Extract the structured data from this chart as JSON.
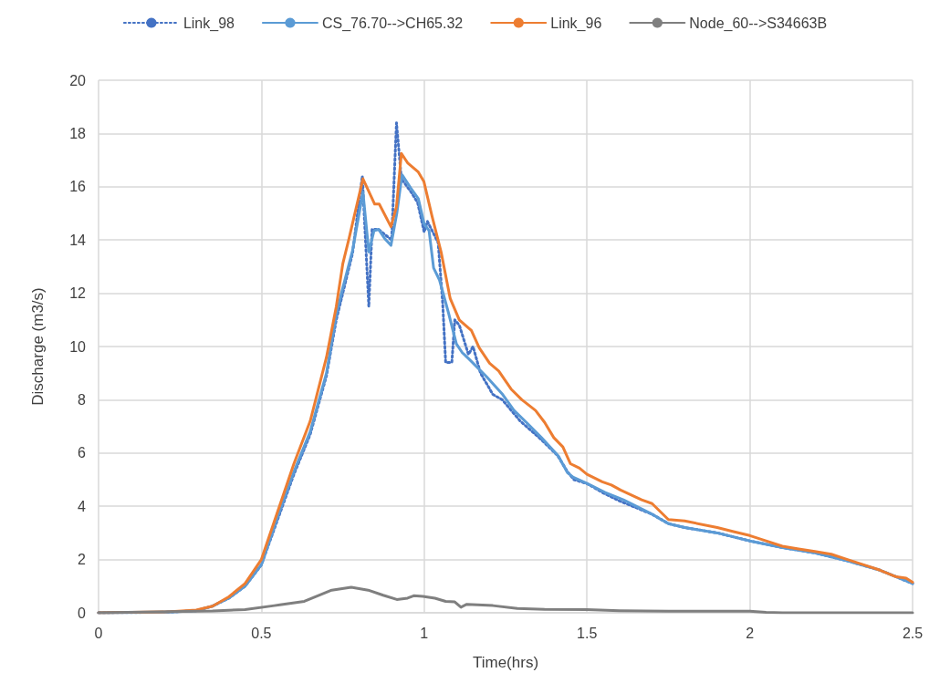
{
  "chart_data": {
    "type": "line",
    "xlabel": "Time(hrs)",
    "ylabel": "Discharge (m3/s)",
    "xlim": [
      0,
      2.5
    ],
    "xticks": [
      0,
      0.5,
      1,
      1.5,
      2,
      2.5
    ],
    "ylim": [
      0,
      20
    ],
    "yticks": [
      0,
      2,
      4,
      6,
      8,
      10,
      12,
      14,
      16,
      18,
      20
    ],
    "grid": true,
    "legend": "top",
    "marker": "none",
    "series": [
      {
        "name": "Link_98",
        "color": "#4472c4",
        "line_style": "dotted",
        "x": [
          0,
          0.2,
          0.3,
          0.35,
          0.4,
          0.45,
          0.5,
          0.55,
          0.6,
          0.65,
          0.7,
          0.73,
          0.75,
          0.78,
          0.81,
          0.83,
          0.84,
          0.86,
          0.9,
          0.915,
          0.93,
          0.96,
          0.98,
          1.0,
          1.01,
          1.043,
          1.057,
          1.066,
          1.085,
          1.094,
          1.108,
          1.136,
          1.15,
          1.173,
          1.211,
          1.24,
          1.295,
          1.36,
          1.41,
          1.44,
          1.46,
          1.5,
          1.55,
          1.6,
          1.7,
          1.75,
          1.8,
          1.9,
          2.0,
          2.1,
          2.2,
          2.3,
          2.4,
          2.5
        ],
        "values": [
          0,
          0.02,
          0.08,
          0.25,
          0.55,
          1.0,
          1.8,
          3.5,
          5.2,
          6.7,
          8.9,
          11.0,
          12.0,
          13.5,
          16.4,
          11.5,
          14.4,
          14.4,
          14.0,
          18.4,
          16.3,
          15.8,
          15.4,
          14.3,
          14.7,
          13.9,
          11.6,
          9.4,
          9.4,
          11.0,
          10.8,
          9.7,
          10.0,
          9.0,
          8.2,
          8.0,
          7.2,
          6.5,
          5.9,
          5.3,
          5.0,
          4.85,
          4.5,
          4.2,
          3.7,
          3.35,
          3.2,
          3.0,
          2.7,
          2.45,
          2.25,
          1.95,
          1.6,
          1.1
        ]
      },
      {
        "name": "CS_76.70-->CH65.32",
        "color": "#5b9bd5",
        "line_style": "solid",
        "x": [
          0,
          0.2,
          0.3,
          0.35,
          0.4,
          0.45,
          0.5,
          0.55,
          0.6,
          0.65,
          0.7,
          0.73,
          0.75,
          0.78,
          0.812,
          0.83,
          0.846,
          0.86,
          0.879,
          0.898,
          0.916,
          0.932,
          0.959,
          0.982,
          1.0,
          1.015,
          1.029,
          1.047,
          1.075,
          1.099,
          1.117,
          1.136,
          1.192,
          1.239,
          1.276,
          1.314,
          1.36,
          1.412,
          1.44,
          1.458,
          1.5,
          1.556,
          1.612,
          1.7,
          1.75,
          1.8,
          1.9,
          2.0,
          2.1,
          2.2,
          2.3,
          2.4,
          2.5
        ],
        "values": [
          0,
          0.02,
          0.08,
          0.25,
          0.55,
          1.0,
          1.8,
          3.6,
          5.3,
          6.8,
          9.0,
          11.2,
          12.2,
          13.6,
          15.8,
          13.55,
          14.35,
          14.4,
          14.05,
          13.8,
          15.0,
          16.45,
          15.95,
          15.55,
          14.6,
          14.35,
          12.95,
          12.5,
          11.25,
          10.1,
          9.77,
          9.55,
          8.86,
          8.23,
          7.6,
          7.15,
          6.58,
          5.89,
          5.26,
          5.09,
          4.86,
          4.52,
          4.24,
          3.7,
          3.35,
          3.2,
          3.0,
          2.7,
          2.45,
          2.25,
          1.95,
          1.6,
          1.1
        ]
      },
      {
        "name": "Link_96",
        "color": "#ed7d31",
        "line_style": "solid",
        "x": [
          0,
          0.2,
          0.3,
          0.35,
          0.4,
          0.45,
          0.5,
          0.55,
          0.6,
          0.65,
          0.7,
          0.73,
          0.75,
          0.77,
          0.812,
          0.848,
          0.862,
          0.898,
          0.915,
          0.93,
          0.949,
          0.982,
          0.999,
          1.024,
          1.052,
          1.08,
          1.108,
          1.145,
          1.169,
          1.201,
          1.229,
          1.267,
          1.3,
          1.342,
          1.37,
          1.398,
          1.426,
          1.449,
          1.477,
          1.5,
          1.547,
          1.575,
          1.603,
          1.668,
          1.7,
          1.75,
          1.8,
          1.9,
          1.95,
          2.0,
          2.05,
          2.1,
          2.15,
          2.2,
          2.25,
          2.3,
          2.35,
          2.4,
          2.45,
          2.48,
          2.5
        ],
        "values": [
          0,
          0.03,
          0.1,
          0.25,
          0.6,
          1.1,
          2.0,
          3.8,
          5.6,
          7.2,
          9.6,
          11.5,
          13.1,
          14.1,
          16.3,
          15.35,
          15.35,
          14.5,
          15.25,
          17.25,
          16.9,
          16.55,
          16.2,
          14.9,
          13.55,
          11.8,
          11.0,
          10.6,
          9.95,
          9.37,
          9.08,
          8.4,
          8.0,
          7.6,
          7.15,
          6.58,
          6.23,
          5.6,
          5.43,
          5.2,
          4.92,
          4.8,
          4.61,
          4.24,
          4.1,
          3.5,
          3.45,
          3.2,
          3.05,
          2.9,
          2.7,
          2.5,
          2.4,
          2.3,
          2.2,
          2.0,
          1.8,
          1.6,
          1.35,
          1.3,
          1.15
        ]
      },
      {
        "name": "Node_60-->S34663B",
        "color": "#7f7f7f",
        "line_style": "solid",
        "x": [
          0,
          0.35,
          0.45,
          0.54,
          0.557,
          0.632,
          0.716,
          0.776,
          0.828,
          0.874,
          0.916,
          0.949,
          0.968,
          0.996,
          1.033,
          1.066,
          1.094,
          1.113,
          1.131,
          1.211,
          1.286,
          1.37,
          1.5,
          1.6,
          1.75,
          2.0,
          2.05,
          2.1,
          2.5
        ],
        "values": [
          0,
          0.07,
          0.12,
          0.27,
          0.3,
          0.43,
          0.85,
          0.96,
          0.85,
          0.66,
          0.5,
          0.55,
          0.64,
          0.62,
          0.55,
          0.43,
          0.41,
          0.21,
          0.32,
          0.27,
          0.16,
          0.13,
          0.12,
          0.08,
          0.06,
          0.06,
          0.02,
          0,
          0
        ]
      }
    ]
  }
}
